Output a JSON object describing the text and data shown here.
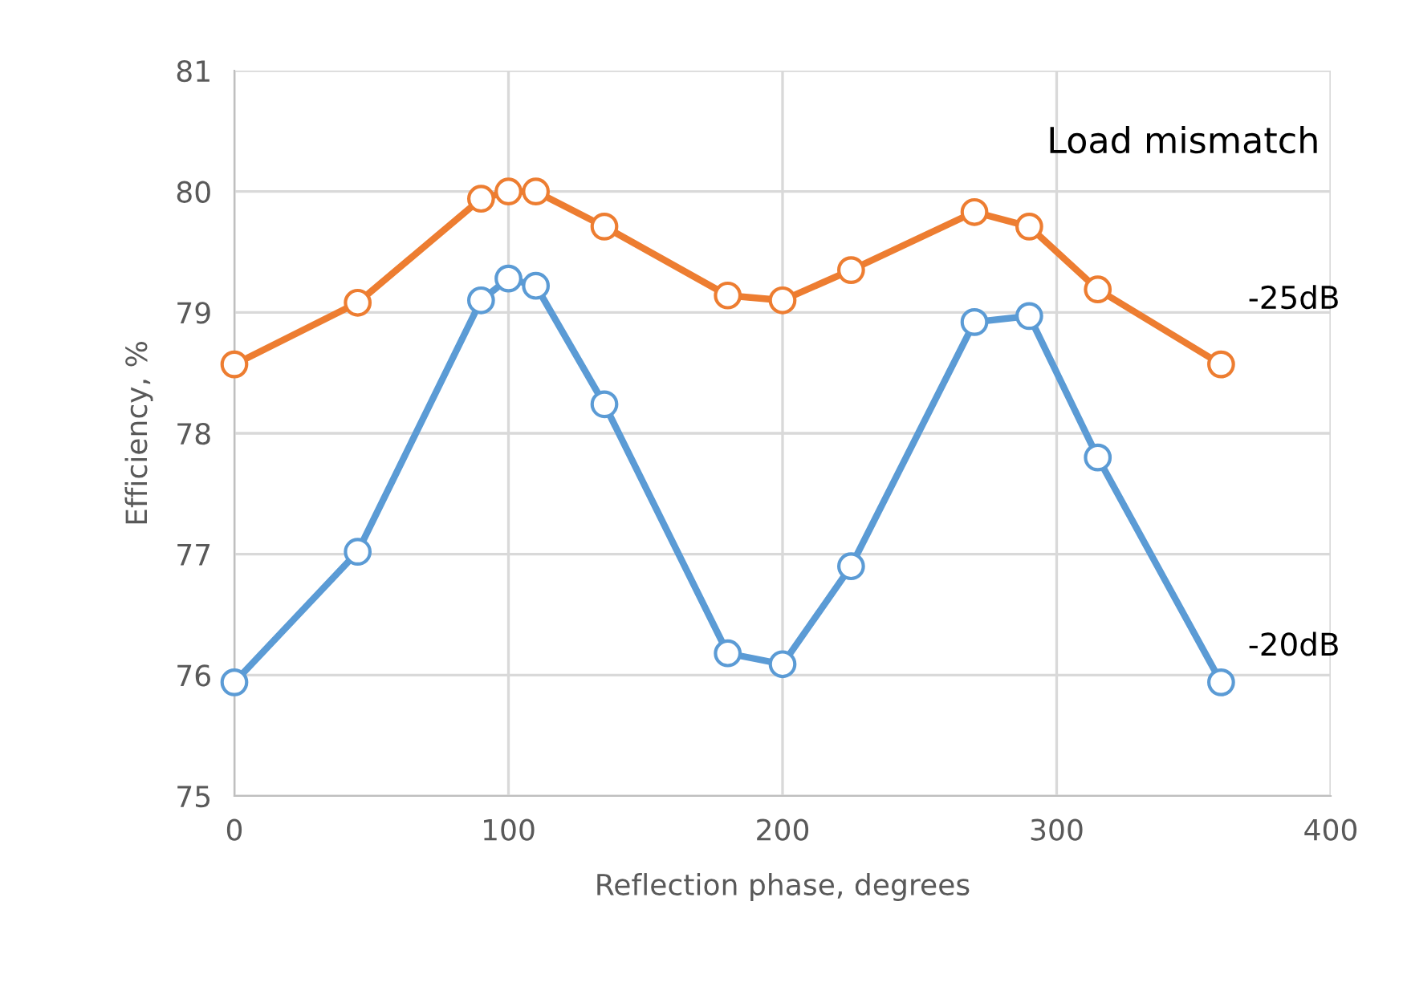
{
  "chart_data": {
    "type": "line",
    "xlabel": "Reflection phase, degrees",
    "ylabel": "Efficiency, %",
    "annotations": [
      "Load mismatch"
    ],
    "xlim": [
      0,
      400
    ],
    "xticks": [
      0,
      100,
      200,
      300,
      400
    ],
    "ylim": [
      75,
      81
    ],
    "yticks": [
      75,
      76,
      77,
      78,
      79,
      80,
      81
    ],
    "grid": true,
    "legend": false,
    "marker": "circle",
    "line_style": "solid",
    "series": [
      {
        "name": "-25dB",
        "color": "#ed7d31",
        "x": [
          0,
          45,
          90,
          100,
          110,
          135,
          180,
          200,
          225,
          270,
          290,
          315,
          360
        ],
        "values": [
          78.57,
          79.08,
          79.94,
          80.0,
          80.0,
          79.71,
          79.14,
          79.1,
          79.35,
          79.83,
          79.71,
          79.19,
          78.57
        ]
      },
      {
        "name": "-20dB",
        "color": "#5b9bd5",
        "x": [
          0,
          45,
          90,
          100,
          110,
          135,
          180,
          200,
          225,
          270,
          290,
          315,
          360
        ],
        "values": [
          75.94,
          77.02,
          79.1,
          79.28,
          79.22,
          78.24,
          76.18,
          76.09,
          76.9,
          78.92,
          78.97,
          77.8,
          75.94
        ]
      }
    ]
  }
}
